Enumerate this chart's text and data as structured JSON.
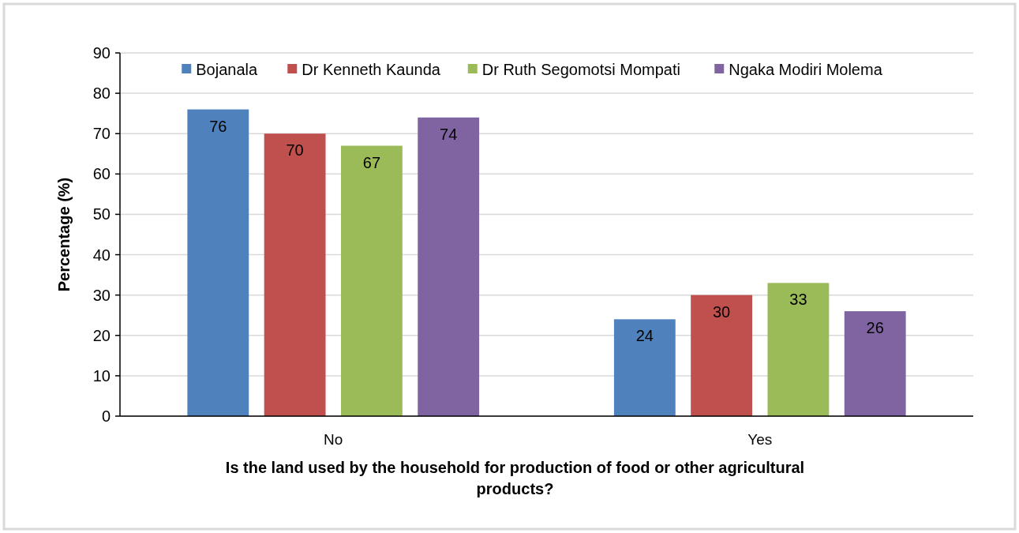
{
  "chart_data": {
    "type": "bar",
    "categories": [
      "No",
      "Yes"
    ],
    "series": [
      {
        "name": "Bojanala",
        "color": "#4f81bd",
        "values": [
          76,
          24
        ]
      },
      {
        "name": "Dr Kenneth Kaunda",
        "color": "#c0504d",
        "values": [
          70,
          30
        ]
      },
      {
        "name": "Dr Ruth Segomotsi Mompati",
        "color": "#9bbb59",
        "values": [
          67,
          33
        ]
      },
      {
        "name": "Ngaka Modiri Molema",
        "color": "#8064a2",
        "values": [
          74,
          26
        ]
      }
    ],
    "xlabel": "Is the land used by the household for production of food or other agricultural products?",
    "ylabel": "Percentage (%)",
    "ylim": [
      0,
      90
    ],
    "yticks": [
      0,
      10,
      20,
      30,
      40,
      50,
      60,
      70,
      80,
      90
    ],
    "grid": "y",
    "legend": "top",
    "data_labels": true
  }
}
